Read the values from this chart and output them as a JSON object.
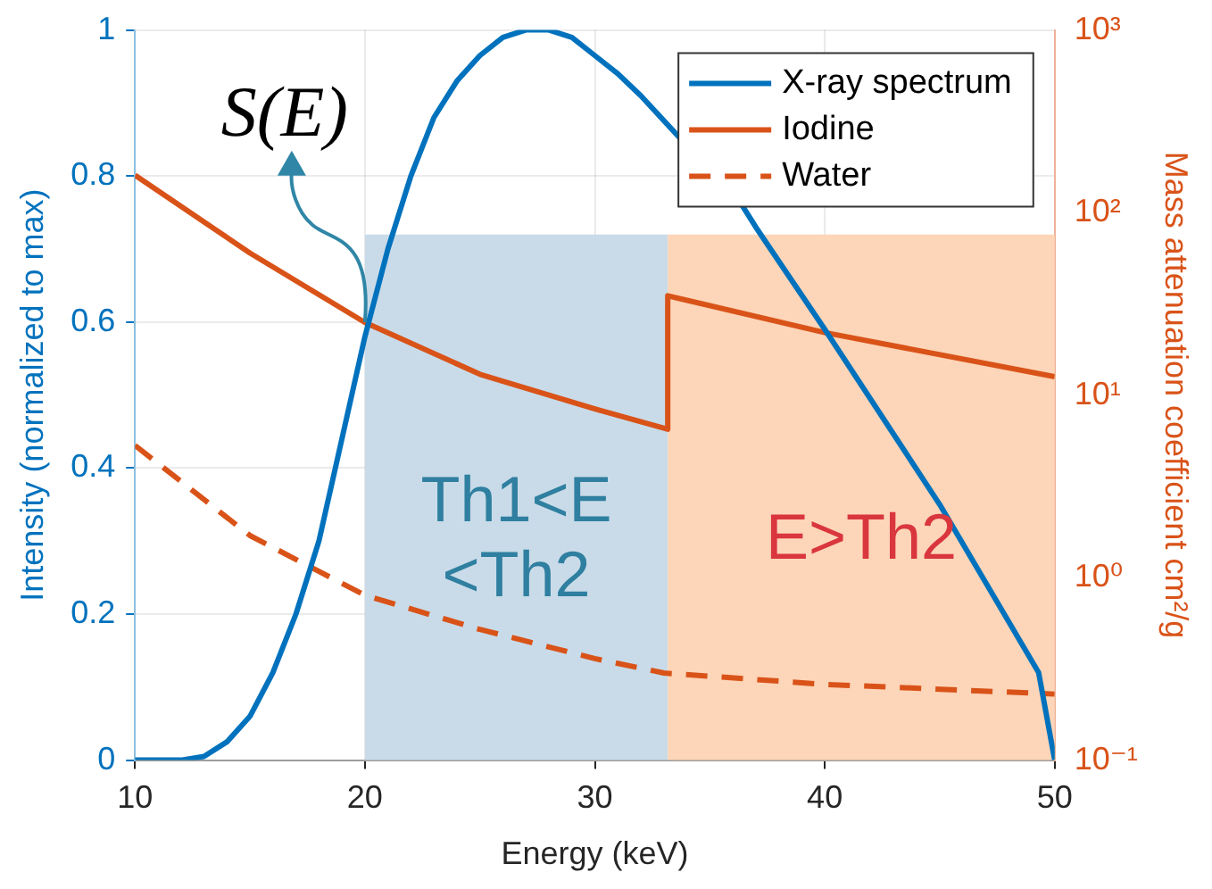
{
  "chart_data": {
    "type": "line",
    "xlabel": "Energy (keV)",
    "ylabel": "Intensity (normalized to max)",
    "y2label": "Mass attenuation coefficient cm²/g",
    "xlim": [
      10,
      50
    ],
    "xticks": [
      10,
      20,
      30,
      40,
      50
    ],
    "ylim": [
      0,
      1
    ],
    "yticks": [
      0,
      0.2,
      0.4,
      0.6,
      0.8,
      1
    ],
    "y2lim": [
      0.1,
      1000
    ],
    "y2ticks": [
      {
        "value": 0.1,
        "label": "10⁻¹"
      },
      {
        "value": 1,
        "label": "10⁰"
      },
      {
        "value": 10,
        "label": "10¹"
      },
      {
        "value": 100,
        "label": "10²"
      },
      {
        "value": 1000,
        "label": "10³"
      }
    ],
    "log": "y2",
    "grid": true,
    "legend": "top right",
    "marker": "none",
    "series": [
      {
        "name": "X-ray spectrum",
        "color": "#0072bd",
        "x": [
          10,
          12,
          13,
          14,
          15,
          16,
          17,
          18,
          19,
          20,
          21,
          22,
          23,
          24,
          25,
          26,
          27,
          28,
          29,
          30,
          31,
          32,
          36.4,
          37,
          40,
          45,
          49.3,
          50
        ],
        "values": [
          0,
          0,
          0.005,
          0.025,
          0.06,
          0.12,
          0.2,
          0.3,
          0.44,
          0.58,
          0.7,
          0.8,
          0.88,
          0.93,
          0.965,
          0.99,
          1,
          1,
          0.99,
          0.965,
          0.94,
          0.91,
          0.76,
          0.73,
          0.59,
          0.35,
          0.12,
          0
        ]
      },
      {
        "name": "Iodine",
        "color": "#d95319",
        "axis": "y2",
        "line_style": "solid",
        "x": [
          10,
          15,
          20,
          25,
          30,
          33.17,
          33.17,
          40,
          50
        ],
        "values": [
          160,
          60,
          25,
          13,
          8.4,
          6.5,
          35,
          22,
          12.6
        ]
      },
      {
        "name": "Water",
        "color": "#d95319",
        "axis": "y2",
        "line_style": "dashed",
        "x": [
          10,
          15,
          20,
          25,
          30,
          33,
          40,
          50
        ],
        "values": [
          5.3,
          1.7,
          0.8,
          0.52,
          0.36,
          0.3,
          0.26,
          0.23
        ]
      }
    ],
    "bands": [
      {
        "axis": "x",
        "from": 20,
        "to": 33.17,
        "label": "Th1<E\n<Th2",
        "color": "#c9dbe8"
      },
      {
        "axis": "x",
        "from": 33.17,
        "to": 50,
        "label": "E>Th2",
        "color": "#fdd5b8"
      }
    ],
    "annotations": [
      {
        "text": "S(E)",
        "x": 20,
        "y": 0.6
      }
    ]
  }
}
